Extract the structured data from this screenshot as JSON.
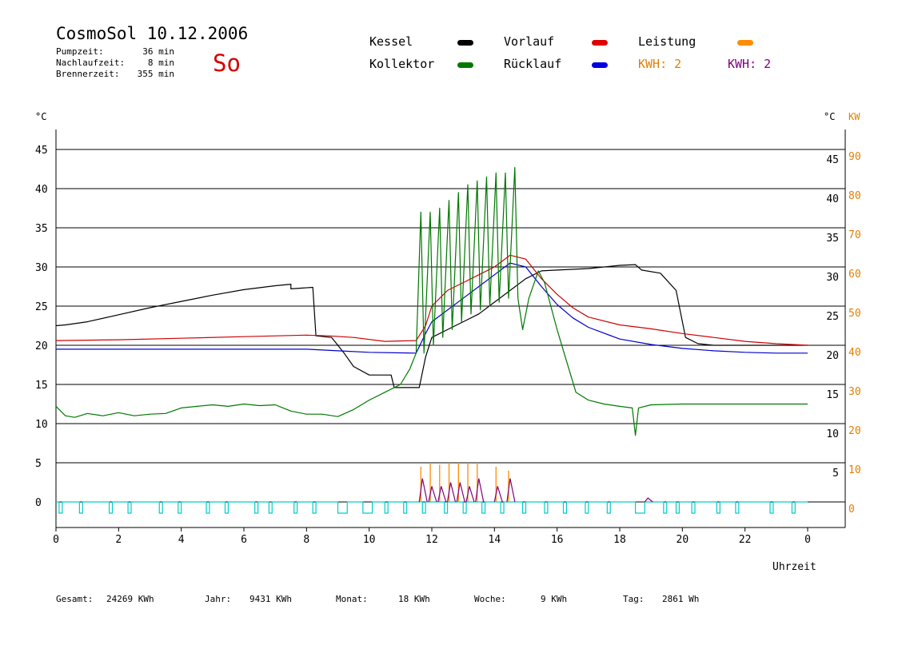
{
  "header": {
    "title": "CosmoSol 10.12.2006",
    "pumpzeit_label": "Pumpzeit:",
    "pumpzeit_value": "36 min",
    "nachlaufzeit_label": "Nachlaufzeit:",
    "nachlaufzeit_value": "8 min",
    "brennerzeit_label": "Brennerzeit:",
    "brennerzeit_value": "355 min",
    "day": "So"
  },
  "legend": {
    "kessel": "Kessel",
    "kollektor": "Kollektor",
    "vorlauf": "Vorlauf",
    "ruecklauf": "Rücklauf",
    "leistung": "Leistung",
    "kwh_orange": "KWH: 2",
    "kwh_purple": "KWH: 2"
  },
  "colors": {
    "kessel": "#000000",
    "kollektor": "#007800",
    "vorlauf": "#d00000",
    "ruecklauf": "#0000cc",
    "leistung": "#ff8c00",
    "kwh_purple": "#800080",
    "pump": "#00cccc",
    "axis_right": "#e08000"
  },
  "axes": {
    "left_unit": "°C",
    "right_unit_c": "°C",
    "right_unit_kw": "KW",
    "x_label": "Uhrzeit"
  },
  "footer": {
    "gesamt_label": "Gesamt:",
    "gesamt_value": "24269 KWh",
    "jahr_label": "Jahr:",
    "jahr_value": "9431 KWh",
    "monat_label": "Monat:",
    "monat_value": "18 KWh",
    "woche_label": "Woche:",
    "woche_value": "9 KWh",
    "tag_label": "Tag:",
    "tag_value": "2861 Wh"
  },
  "chart_data": {
    "type": "line",
    "x_unit": "h",
    "xlim": [
      0,
      24
    ],
    "ylim": [
      0,
      48
    ],
    "y2lim": [
      0,
      96
    ],
    "grid": true,
    "x_ticks": [
      "0",
      "2",
      "4",
      "6",
      "8",
      "10",
      "12",
      "14",
      "16",
      "18",
      "20",
      "22",
      "0"
    ],
    "y_ticks_left": [
      "0",
      "5",
      "10",
      "15",
      "20",
      "25",
      "30",
      "35",
      "40",
      "45"
    ],
    "y_ticks_right_c": [
      "5",
      "10",
      "15",
      "20",
      "25",
      "30",
      "35",
      "40",
      "45"
    ],
    "y_ticks_right_kw": [
      "0",
      "10",
      "20",
      "30",
      "40",
      "50",
      "60",
      "70",
      "80",
      "90"
    ],
    "series": [
      {
        "name": "Kessel",
        "key": "kessel",
        "points": [
          [
            0,
            22.5
          ],
          [
            0.3,
            22.6
          ],
          [
            1,
            23
          ],
          [
            2,
            23.9
          ],
          [
            3,
            24.8
          ],
          [
            4,
            25.6
          ],
          [
            5,
            26.4
          ],
          [
            6,
            27.1
          ],
          [
            7,
            27.6
          ],
          [
            7.5,
            27.8
          ],
          [
            7.5,
            27.2
          ],
          [
            8.2,
            27.4
          ],
          [
            8.3,
            21.2
          ],
          [
            8.8,
            21
          ],
          [
            9.2,
            19
          ],
          [
            9.5,
            17.3
          ],
          [
            10,
            16.2
          ],
          [
            10.7,
            16.2
          ],
          [
            10.8,
            14.6
          ],
          [
            11.6,
            14.6
          ],
          [
            11.8,
            18.5
          ],
          [
            12,
            21
          ],
          [
            12.5,
            22
          ],
          [
            13,
            23
          ],
          [
            13.5,
            24
          ],
          [
            14,
            25.5
          ],
          [
            14.5,
            27
          ],
          [
            15,
            28.5
          ],
          [
            15.5,
            29.5
          ],
          [
            16,
            29.6
          ],
          [
            17,
            29.8
          ],
          [
            18,
            30.2
          ],
          [
            18.5,
            30.3
          ],
          [
            18.7,
            29.6
          ],
          [
            19.3,
            29.2
          ],
          [
            19.8,
            27
          ],
          [
            20.1,
            21
          ],
          [
            20.5,
            20.2
          ],
          [
            21,
            20
          ],
          [
            22,
            20
          ],
          [
            23,
            20
          ],
          [
            24,
            20
          ]
        ]
      },
      {
        "name": "Vorlauf",
        "key": "vorlauf",
        "points": [
          [
            0,
            20.6
          ],
          [
            2,
            20.7
          ],
          [
            4,
            20.9
          ],
          [
            6,
            21.1
          ],
          [
            8,
            21.3
          ],
          [
            8.7,
            21.2
          ],
          [
            9.5,
            21
          ],
          [
            10.5,
            20.5
          ],
          [
            11.5,
            20.6
          ],
          [
            11.8,
            22.5
          ],
          [
            12,
            25
          ],
          [
            12.5,
            27
          ],
          [
            13,
            28
          ],
          [
            13.5,
            29
          ],
          [
            14,
            30
          ],
          [
            14.5,
            31.5
          ],
          [
            15,
            31
          ],
          [
            15.5,
            28.5
          ],
          [
            16,
            26.5
          ],
          [
            16.5,
            24.8
          ],
          [
            17,
            23.6
          ],
          [
            18,
            22.6
          ],
          [
            19,
            22.1
          ],
          [
            20,
            21.5
          ],
          [
            21,
            21
          ],
          [
            22,
            20.5
          ],
          [
            23,
            20.2
          ],
          [
            24,
            20
          ]
        ]
      },
      {
        "name": "Rücklauf",
        "key": "ruecklauf",
        "points": [
          [
            0,
            19.5
          ],
          [
            2,
            19.5
          ],
          [
            4,
            19.5
          ],
          [
            6,
            19.5
          ],
          [
            8,
            19.5
          ],
          [
            9,
            19.3
          ],
          [
            10,
            19.1
          ],
          [
            11.5,
            19
          ],
          [
            11.8,
            21.5
          ],
          [
            12,
            23
          ],
          [
            12.5,
            24.5
          ],
          [
            13,
            26
          ],
          [
            13.5,
            27.5
          ],
          [
            14,
            29
          ],
          [
            14.5,
            30.5
          ],
          [
            15,
            30
          ],
          [
            15.5,
            27.5
          ],
          [
            16,
            25.2
          ],
          [
            16.5,
            23.5
          ],
          [
            17,
            22.3
          ],
          [
            18,
            20.8
          ],
          [
            19,
            20.1
          ],
          [
            20,
            19.6
          ],
          [
            21,
            19.3
          ],
          [
            22,
            19.1
          ],
          [
            23,
            19
          ],
          [
            24,
            19
          ]
        ]
      },
      {
        "name": "Kollektor",
        "key": "kollektor",
        "points": [
          [
            0,
            12.2
          ],
          [
            0.3,
            11
          ],
          [
            0.6,
            10.8
          ],
          [
            1,
            11.3
          ],
          [
            1.5,
            11
          ],
          [
            2,
            11.4
          ],
          [
            2.5,
            11
          ],
          [
            3,
            11.2
          ],
          [
            3.5,
            11.3
          ],
          [
            4,
            12
          ],
          [
            4.5,
            12.2
          ],
          [
            5,
            12.4
          ],
          [
            5.5,
            12.2
          ],
          [
            6,
            12.5
          ],
          [
            6.5,
            12.3
          ],
          [
            7,
            12.4
          ],
          [
            7.5,
            11.6
          ],
          [
            8,
            11.2
          ],
          [
            8.5,
            11.2
          ],
          [
            9,
            10.9
          ],
          [
            9.5,
            11.8
          ],
          [
            10,
            13
          ],
          [
            10.5,
            14
          ],
          [
            11,
            15
          ],
          [
            11.3,
            17
          ],
          [
            11.5,
            19
          ],
          [
            11.65,
            37
          ],
          [
            11.75,
            19
          ],
          [
            11.95,
            37
          ],
          [
            12.05,
            20
          ],
          [
            12.25,
            37.5
          ],
          [
            12.35,
            21
          ],
          [
            12.55,
            38.5
          ],
          [
            12.65,
            22
          ],
          [
            12.85,
            39.5
          ],
          [
            12.95,
            23
          ],
          [
            13.15,
            40.5
          ],
          [
            13.25,
            24
          ],
          [
            13.45,
            41
          ],
          [
            13.55,
            24.5
          ],
          [
            13.75,
            41.5
          ],
          [
            13.85,
            25
          ],
          [
            14.05,
            42
          ],
          [
            14.15,
            25.5
          ],
          [
            14.35,
            42
          ],
          [
            14.45,
            26
          ],
          [
            14.65,
            42.7
          ],
          [
            14.75,
            26
          ],
          [
            14.9,
            22
          ],
          [
            15.1,
            26
          ],
          [
            15.4,
            29.5
          ],
          [
            15.6,
            28
          ],
          [
            15.8,
            25
          ],
          [
            16,
            22
          ],
          [
            16.3,
            18
          ],
          [
            16.6,
            14
          ],
          [
            17,
            13
          ],
          [
            17.5,
            12.5
          ],
          [
            18,
            12.2
          ],
          [
            18.4,
            12
          ],
          [
            18.5,
            8.5
          ],
          [
            18.6,
            12
          ],
          [
            19,
            12.4
          ],
          [
            20,
            12.5
          ],
          [
            21,
            12.5
          ],
          [
            22,
            12.5
          ],
          [
            23,
            12.5
          ],
          [
            24,
            12.5
          ]
        ]
      }
    ],
    "leistung_spikes_kw": [
      [
        11.65,
        9
      ],
      [
        11.95,
        10
      ],
      [
        12.25,
        9.5
      ],
      [
        12.55,
        10
      ],
      [
        12.85,
        10
      ],
      [
        13.15,
        10
      ],
      [
        13.45,
        10
      ],
      [
        14.05,
        9
      ],
      [
        14.45,
        8
      ]
    ],
    "kwh_spikes_kw": [
      [
        11.7,
        6
      ],
      [
        12,
        4
      ],
      [
        12.3,
        4
      ],
      [
        12.6,
        5
      ],
      [
        12.9,
        5
      ],
      [
        13.2,
        4
      ],
      [
        13.5,
        6
      ],
      [
        14.1,
        4
      ],
      [
        14.5,
        6
      ],
      [
        18.9,
        1
      ]
    ],
    "pump_pulses_h": [
      [
        0.1,
        0.2
      ],
      [
        0.75,
        0.85
      ],
      [
        1.7,
        1.8
      ],
      [
        2.3,
        2.4
      ],
      [
        3.3,
        3.4
      ],
      [
        3.9,
        4
      ],
      [
        4.8,
        4.9
      ],
      [
        5.4,
        5.5
      ],
      [
        6.35,
        6.45
      ],
      [
        6.8,
        6.9
      ],
      [
        7.6,
        7.7
      ],
      [
        8.2,
        8.3
      ],
      [
        9,
        9.3
      ],
      [
        9.8,
        10.1
      ],
      [
        10.5,
        10.6
      ],
      [
        11.1,
        11.2
      ],
      [
        11.7,
        11.8
      ],
      [
        12.4,
        12.5
      ],
      [
        13,
        13.1
      ],
      [
        13.6,
        13.7
      ],
      [
        14.2,
        14.3
      ],
      [
        14.9,
        15
      ],
      [
        15.6,
        15.7
      ],
      [
        16.2,
        16.3
      ],
      [
        16.9,
        17
      ],
      [
        17.6,
        17.7
      ],
      [
        18.5,
        18.8
      ],
      [
        19.4,
        19.5
      ],
      [
        19.8,
        19.9
      ],
      [
        20.3,
        20.4
      ],
      [
        21.1,
        21.2
      ],
      [
        21.7,
        21.8
      ],
      [
        22.8,
        22.9
      ],
      [
        23.5,
        23.6
      ]
    ]
  }
}
